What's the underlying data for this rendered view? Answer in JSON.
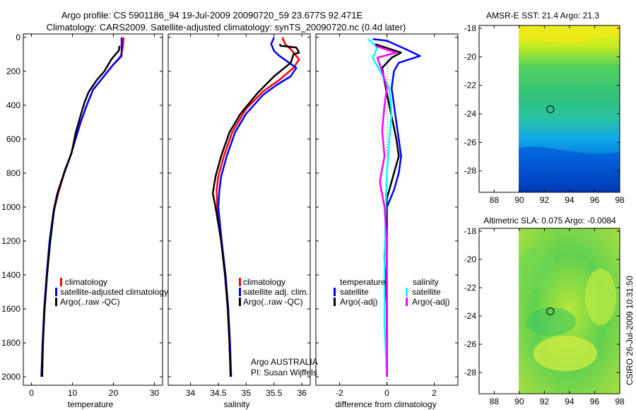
{
  "header": {
    "title_line1": "Argo profile: CS 5901186_94 19-Jul-2009 20090720_59 23.677S 92.471E",
    "title_line2": "Climatology: CARS2009. Satellite-adjusted climatology: synTS_20090720.nc (0.4d later)"
  },
  "colors": {
    "red": "#ff0000",
    "blue": "#0000ff",
    "black": "#000000",
    "cyan": "#00ffff",
    "magenta": "#ff00ff"
  },
  "chart_data": [
    {
      "type": "line",
      "id": "temperature",
      "xlabel": "temperature",
      "xlim": [
        -2,
        32
      ],
      "ylim": [
        2050,
        -20
      ],
      "xticks": [
        "0",
        "10",
        "20",
        "30"
      ],
      "yticks": [
        "0",
        "200",
        "400",
        "600",
        "800",
        "1000",
        "1200",
        "1400",
        "1600",
        "1800",
        "2000"
      ],
      "legend": [
        {
          "label": "climatology",
          "color": "#ff0000"
        },
        {
          "label": "satellite-adjusted climatology",
          "color": "#0000ff"
        },
        {
          "label": "Argo(..raw -QC)",
          "color": "#000000"
        }
      ],
      "series": [
        {
          "name": "climatology",
          "color": "#ff0000",
          "points": [
            [
              22.5,
              0
            ],
            [
              22.3,
              60
            ],
            [
              21.8,
              110
            ],
            [
              20,
              160
            ],
            [
              18,
              220
            ],
            [
              15,
              310
            ],
            [
              13.5,
              400
            ],
            [
              12,
              500
            ],
            [
              10.5,
              620
            ],
            [
              9.5,
              700
            ],
            [
              8,
              800
            ],
            [
              6.5,
              920
            ],
            [
              5.5,
              1020
            ],
            [
              4.5,
              1200
            ],
            [
              3.8,
              1400
            ],
            [
              3.2,
              1600
            ],
            [
              2.8,
              1800
            ],
            [
              2.5,
              2000
            ]
          ]
        },
        {
          "name": "satellite-adjusted climatology",
          "color": "#0000ff",
          "points": [
            [
              22.0,
              0
            ],
            [
              22.0,
              60
            ],
            [
              22.0,
              110
            ],
            [
              20,
              160
            ],
            [
              18,
              220
            ],
            [
              15,
              310
            ],
            [
              13.5,
              400
            ],
            [
              12,
              500
            ],
            [
              10.5,
              620
            ],
            [
              9.5,
              700
            ],
            [
              8,
              800
            ],
            [
              6.3,
              920
            ],
            [
              5.4,
              1020
            ],
            [
              4.4,
              1200
            ],
            [
              3.7,
              1400
            ],
            [
              3.1,
              1600
            ],
            [
              2.7,
              1800
            ],
            [
              2.4,
              2000
            ]
          ]
        },
        {
          "name": "Argo(..raw -QC)",
          "color": "#000000",
          "points": [
            [
              21.5,
              50
            ],
            [
              21.3,
              80
            ],
            [
              20.5,
              100
            ],
            [
              19.5,
              130
            ],
            [
              17.8,
              200
            ],
            [
              16,
              250
            ],
            [
              14,
              320
            ],
            [
              13,
              380
            ],
            [
              12,
              460
            ],
            [
              10.8,
              560
            ],
            [
              9.8,
              680
            ],
            [
              8.2,
              780
            ],
            [
              6.6,
              900
            ],
            [
              5.6,
              1000
            ],
            [
              4.6,
              1200
            ],
            [
              3.8,
              1400
            ],
            [
              3.2,
              1600
            ],
            [
              2.8,
              1800
            ],
            [
              2.6,
              2000
            ]
          ]
        }
      ]
    },
    {
      "type": "line",
      "id": "salinity",
      "xlabel": "salinity",
      "xlim": [
        33.6,
        36.15
      ],
      "ylim": [
        2050,
        -20
      ],
      "xticks": [
        "34",
        "34.5",
        "35",
        "35.5",
        "36"
      ],
      "legend": [
        {
          "label": "climatology",
          "color": "#ff0000"
        },
        {
          "label": "satellite adj. clim.",
          "color": "#0000ff"
        },
        {
          "label": "Argo(..raw -QC)",
          "color": "#000000"
        }
      ],
      "annotation": [
        "Argo AUSTRALIA",
        "PI: Susan Wijffels"
      ],
      "series": [
        {
          "name": "climatology",
          "color": "#ff0000",
          "points": [
            [
              35.65,
              0
            ],
            [
              35.7,
              40
            ],
            [
              35.8,
              70
            ],
            [
              35.95,
              130
            ],
            [
              35.85,
              180
            ],
            [
              35.6,
              250
            ],
            [
              35.3,
              320
            ],
            [
              35.0,
              420
            ],
            [
              34.75,
              560
            ],
            [
              34.6,
              700
            ],
            [
              34.5,
              820
            ],
            [
              34.47,
              900
            ],
            [
              34.48,
              1000
            ],
            [
              34.55,
              1200
            ],
            [
              34.62,
              1400
            ],
            [
              34.67,
              1600
            ],
            [
              34.7,
              1800
            ],
            [
              34.72,
              2000
            ]
          ]
        },
        {
          "name": "satellite adj. clim.",
          "color": "#0000ff",
          "points": [
            [
              35.5,
              0
            ],
            [
              35.45,
              40
            ],
            [
              35.5,
              80
            ],
            [
              35.6,
              110
            ],
            [
              35.9,
              180
            ],
            [
              35.8,
              230
            ],
            [
              35.55,
              280
            ],
            [
              35.3,
              340
            ],
            [
              35.0,
              450
            ],
            [
              34.8,
              560
            ],
            [
              34.65,
              700
            ],
            [
              34.55,
              820
            ],
            [
              34.52,
              900
            ],
            [
              34.5,
              1000
            ],
            [
              34.56,
              1200
            ],
            [
              34.63,
              1400
            ],
            [
              34.68,
              1600
            ],
            [
              34.71,
              1800
            ],
            [
              34.73,
              2000
            ]
          ]
        },
        {
          "name": "Argo(..raw -QC)",
          "color": "#000000",
          "points": [
            [
              35.6,
              40
            ],
            [
              35.62,
              50
            ],
            [
              35.9,
              60
            ],
            [
              35.95,
              90
            ],
            [
              35.85,
              100
            ],
            [
              35.8,
              150
            ],
            [
              35.5,
              230
            ],
            [
              35.2,
              330
            ],
            [
              34.9,
              450
            ],
            [
              34.7,
              560
            ],
            [
              34.55,
              700
            ],
            [
              34.45,
              820
            ],
            [
              34.4,
              920
            ],
            [
              34.45,
              1000
            ],
            [
              34.55,
              1200
            ],
            [
              34.62,
              1400
            ],
            [
              34.67,
              1600
            ],
            [
              34.7,
              1800
            ],
            [
              34.72,
              2000
            ]
          ]
        }
      ]
    },
    {
      "type": "line",
      "id": "difference",
      "xlabel": "difference from climatology",
      "xlim": [
        -3,
        3
      ],
      "ylim": [
        2050,
        -20
      ],
      "xticks": [
        "-2",
        "0",
        "2"
      ],
      "legend_headers": [
        "temperature",
        "salinity"
      ],
      "legend": [
        {
          "label": "satellite",
          "color": "#0000ff"
        },
        {
          "label": "Argo(-adj)",
          "color": "#000000"
        },
        {
          "label": "satellite",
          "color": "#00ffff"
        },
        {
          "label": "Argo(-adj)",
          "color": "#ff00ff"
        }
      ],
      "series": [
        {
          "name": "temperature satellite",
          "color": "#0000ff",
          "points": [
            [
              -0.6,
              10
            ],
            [
              0,
              20
            ],
            [
              0.8,
              70
            ],
            [
              1.4,
              110
            ],
            [
              0.5,
              150
            ],
            [
              0.3,
              200
            ],
            [
              0.2,
              300
            ],
            [
              0.4,
              500
            ],
            [
              0.6,
              700
            ],
            [
              0.5,
              800
            ],
            [
              0.3,
              900
            ],
            [
              0,
              1000
            ],
            [
              0,
              1500
            ],
            [
              0,
              2000
            ]
          ]
        },
        {
          "name": "temperature Argo(-adj)",
          "color": "#000000",
          "points": [
            [
              -0.5,
              40
            ],
            [
              0.6,
              90
            ],
            [
              0.2,
              120
            ],
            [
              -0.2,
              180
            ],
            [
              -0.1,
              260
            ],
            [
              0.1,
              400
            ],
            [
              0.4,
              600
            ],
            [
              0.5,
              700
            ],
            [
              0.3,
              800
            ],
            [
              0,
              950
            ],
            [
              -0.1,
              1300
            ],
            [
              0,
              1600
            ],
            [
              0,
              2000
            ]
          ]
        },
        {
          "name": "salinity satellite",
          "color": "#00ffff",
          "points": [
            [
              -0.8,
              10
            ],
            [
              -0.4,
              60
            ],
            [
              -0.6,
              120
            ],
            [
              -0.2,
              220
            ],
            [
              0.1,
              300
            ],
            [
              0.2,
              450
            ],
            [
              0.1,
              600
            ],
            [
              0,
              800
            ],
            [
              -0.05,
              1000
            ],
            [
              -0.1,
              1400
            ],
            [
              -0.1,
              1700
            ],
            [
              0,
              2000
            ]
          ]
        },
        {
          "name": "salinity Argo(-adj)",
          "color": "#ff00ff",
          "points": [
            [
              -0.5,
              50
            ],
            [
              0.4,
              90
            ],
            [
              -0.4,
              120
            ],
            [
              -0.2,
              200
            ],
            [
              0,
              300
            ],
            [
              -0.1,
              400
            ],
            [
              -0.2,
              550
            ],
            [
              -0.1,
              700
            ],
            [
              -0.3,
              850
            ],
            [
              -0.1,
              1000
            ],
            [
              0,
              1200
            ],
            [
              0,
              1600
            ],
            [
              0,
              2000
            ]
          ]
        }
      ]
    },
    {
      "type": "heatmap",
      "id": "sst-map",
      "title": "AMSR-E SST: 21.4 Argo: 21.3",
      "xlim": [
        86.8,
        98
      ],
      "ylim": [
        -29.5,
        -17.8
      ],
      "xticks": [
        "88",
        "90",
        "92",
        "94",
        "96",
        "98"
      ],
      "yticks": [
        "-18",
        "-20",
        "-22",
        "-24",
        "-26",
        "-28"
      ],
      "marker": {
        "lon": 92.471,
        "lat": -23.677
      }
    },
    {
      "type": "heatmap",
      "id": "sla-map",
      "title": "Altimetric SLA: 0.075 Argo: -0.0084",
      "xlim": [
        86.8,
        98
      ],
      "ylim": [
        -29.5,
        -17.8
      ],
      "xticks": [
        "88",
        "90",
        "92",
        "94",
        "96",
        "98"
      ],
      "yticks": [
        "-18",
        "-20",
        "-22",
        "-24",
        "-26",
        "-28"
      ],
      "marker": {
        "lon": 92.471,
        "lat": -23.677
      }
    }
  ],
  "footer": {
    "credit": "CSIRO 26-Jul-2009 10:31:50"
  }
}
